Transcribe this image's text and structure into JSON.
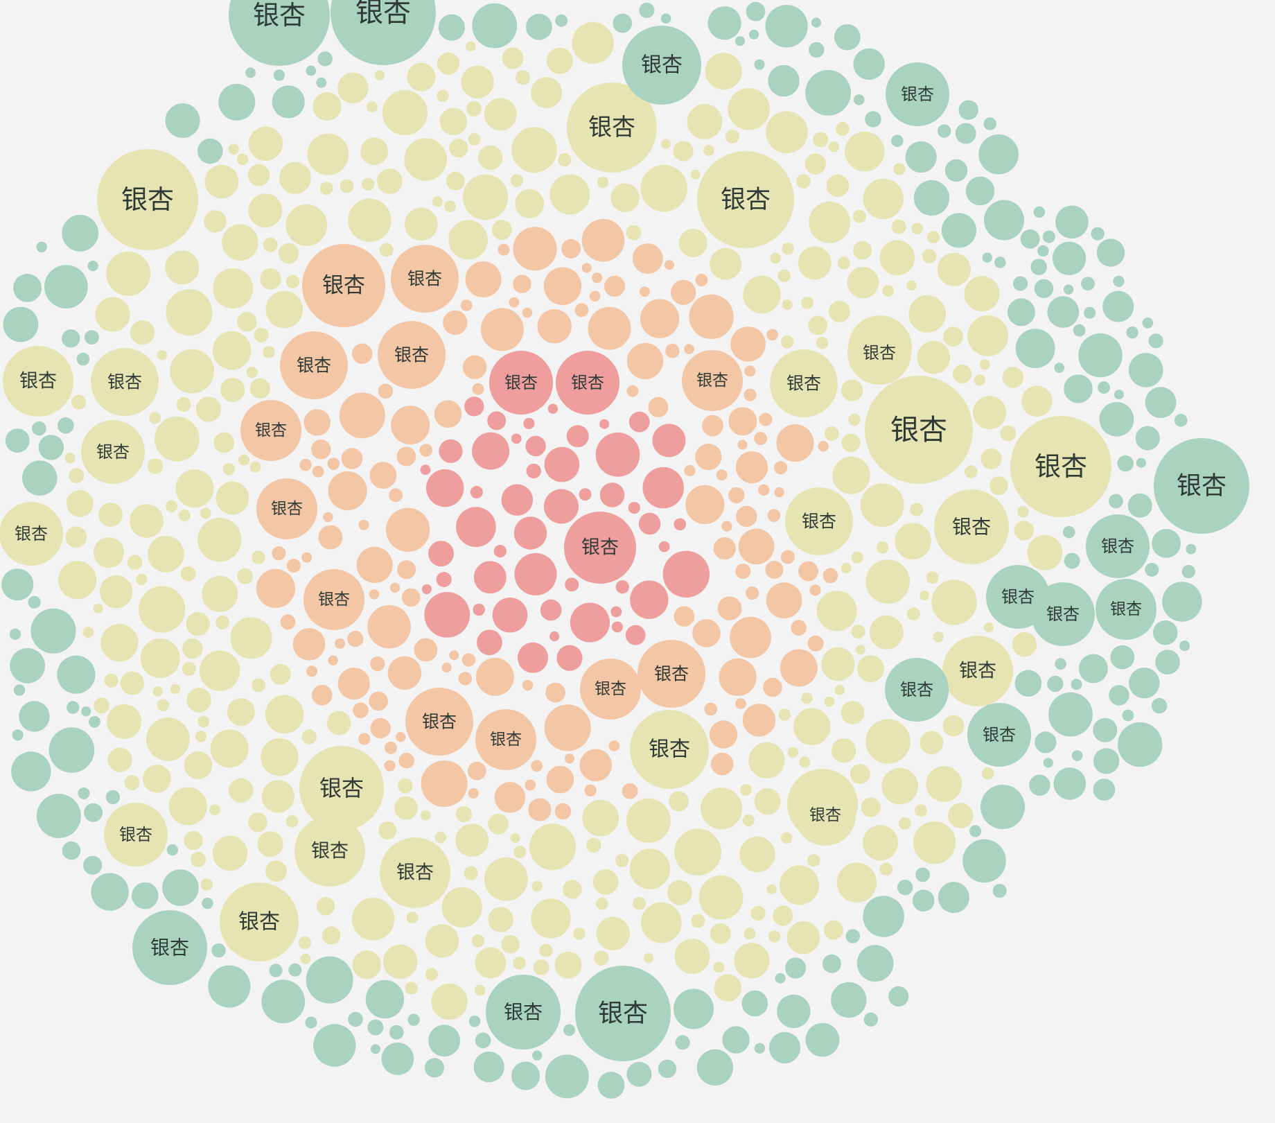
{
  "chart_data": {
    "type": "packed-bubble",
    "title": "",
    "label": "银杏",
    "grid": false,
    "legend": "none",
    "colors": {
      "core": "#ee9f9d",
      "inner": "#f3c6a6",
      "middle": "#e7e4b4",
      "outer": "#a9d2c1",
      "background": "#f3f3f3"
    },
    "series": [
      {
        "group": "core",
        "points": [
          {
            "label": "银杏",
            "value": 4.6
          },
          {
            "label": "银杏",
            "value": 4.6
          },
          {
            "label": "银杏",
            "value": 5.2
          }
        ]
      },
      {
        "group": "inner",
        "points": [
          {
            "label": "银杏",
            "value": 6.0
          },
          {
            "label": "银杏",
            "value": 4.9
          },
          {
            "label": "银杏",
            "value": 4.9
          },
          {
            "label": "银杏",
            "value": 4.9
          },
          {
            "label": "银杏",
            "value": 4.4
          },
          {
            "label": "银杏",
            "value": 4.4
          },
          {
            "label": "银杏",
            "value": 4.4
          },
          {
            "label": "银杏",
            "value": 4.9
          },
          {
            "label": "银杏",
            "value": 4.4
          },
          {
            "label": "银杏",
            "value": 4.4
          },
          {
            "label": "银杏",
            "value": 4.9
          },
          {
            "label": "银杏",
            "value": 4.4
          }
        ]
      },
      {
        "group": "middle",
        "points": [
          {
            "label": "银杏",
            "value": 7.3
          },
          {
            "label": "银杏",
            "value": 7.0
          },
          {
            "label": "银杏",
            "value": 7.3
          },
          {
            "label": "银杏",
            "value": 7.8
          },
          {
            "label": "银杏",
            "value": 6.5
          },
          {
            "label": "银杏",
            "value": 6.1
          },
          {
            "label": "银杏",
            "value": 5.7
          },
          {
            "label": "银杏",
            "value": 5.4
          },
          {
            "label": "银杏",
            "value": 5.7
          },
          {
            "label": "银杏",
            "value": 5.1
          },
          {
            "label": "银杏",
            "value": 5.1
          },
          {
            "label": "银杏",
            "value": 5.1
          },
          {
            "label": "银杏",
            "value": 4.9
          },
          {
            "label": "银杏",
            "value": 4.9
          },
          {
            "label": "银杏",
            "value": 4.6
          },
          {
            "label": "银杏",
            "value": 4.9
          },
          {
            "label": "银杏",
            "value": 5.1
          },
          {
            "label": "银杏",
            "value": 4.6
          },
          {
            "label": "银杏",
            "value": 4.6
          },
          {
            "label": "银杏",
            "value": 5.1
          },
          {
            "label": "银杏",
            "value": 4.6
          },
          {
            "label": "银杏",
            "value": 4.4
          },
          {
            "label": "银杏",
            "value": 4.6
          }
        ]
      },
      {
        "group": "outer",
        "points": [
          {
            "label": "银杏",
            "value": 7.3
          },
          {
            "label": "银杏",
            "value": 7.6
          },
          {
            "label": "银杏",
            "value": 6.9
          },
          {
            "label": "银杏",
            "value": 6.9
          },
          {
            "label": "银杏",
            "value": 5.4
          },
          {
            "label": "银杏",
            "value": 5.4
          },
          {
            "label": "银杏",
            "value": 5.7
          },
          {
            "label": "银杏",
            "value": 4.6
          },
          {
            "label": "银杏",
            "value": 4.6
          },
          {
            "label": "银杏",
            "value": 4.6
          },
          {
            "label": "银杏",
            "value": 4.6
          },
          {
            "label": "银杏",
            "value": 4.6
          },
          {
            "label": "银杏",
            "value": 4.6
          },
          {
            "label": "银杏",
            "value": 4.4
          }
        ]
      }
    ]
  }
}
